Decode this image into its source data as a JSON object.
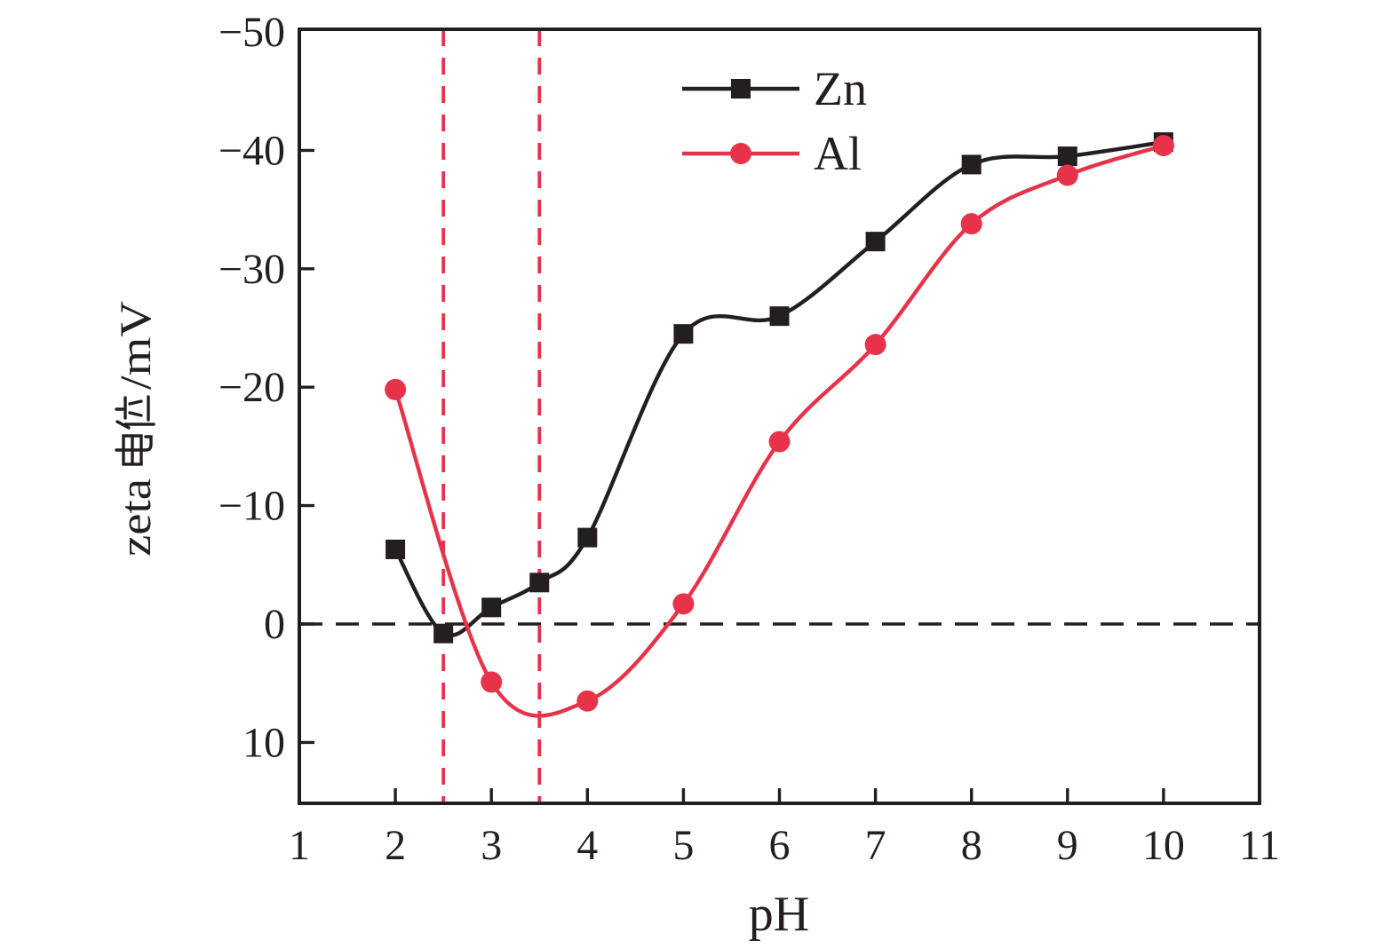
{
  "chart_data": {
    "type": "line",
    "title": "",
    "xlabel": "pH",
    "ylabel": "zeta 电位/mV",
    "ylabel_parts": {
      "prefix": "zeta",
      "cjk": "电位",
      "suffix": "/mV"
    },
    "x_axis": {
      "min": 1,
      "max": 11,
      "tick_values": [
        1,
        2,
        3,
        4,
        5,
        6,
        7,
        8,
        9,
        10,
        11
      ],
      "tick_labels": [
        "1",
        "2",
        "3",
        "4",
        "5",
        "6",
        "7",
        "8",
        "9",
        "10",
        "11"
      ],
      "tickmark_values": [
        2,
        3,
        4,
        5,
        6,
        7,
        8,
        9,
        10
      ]
    },
    "y_axis": {
      "inverted": true,
      "unit": "mV",
      "top_value": -50,
      "bottom_value": 15,
      "tick_values": [
        -50,
        -40,
        -30,
        -20,
        -10,
        0,
        10
      ],
      "tick_labels": [
        "−50",
        "−40",
        "−30",
        "−20",
        "−10",
        "0",
        "10"
      ],
      "tickmark_values": [
        -40,
        -30,
        -20,
        -10,
        0,
        10
      ]
    },
    "series": [
      {
        "name": "Zn",
        "color": "#231f20",
        "marker": "square",
        "x": [
          2,
          2.5,
          3,
          3.5,
          4,
          5,
          6,
          7,
          8,
          9,
          10
        ],
        "y": [
          -6.3,
          0.8,
          -1.4,
          -3.5,
          -7.3,
          -24.5,
          -26.0,
          -32.3,
          -38.8,
          -39.5,
          -40.7
        ]
      },
      {
        "name": "Al",
        "color": "#e73349",
        "marker": "circle",
        "x": [
          2,
          3,
          4,
          5,
          6,
          7,
          8,
          9,
          10
        ],
        "y": [
          -19.8,
          4.9,
          6.5,
          -1.7,
          -15.4,
          -23.6,
          -33.8,
          -37.9,
          -40.4
        ]
      }
    ],
    "reference_lines": {
      "horizontal": {
        "value": 0,
        "style": "dashed",
        "color": "#231f20"
      },
      "vertical": [
        {
          "value": 2.5,
          "style": "dashed",
          "color": "#e73349"
        },
        {
          "value": 3.5,
          "style": "dashed",
          "color": "#e73349"
        }
      ]
    },
    "legend": {
      "position": "top-center",
      "entries": [
        {
          "label": "Zn"
        },
        {
          "label": "Al"
        }
      ]
    }
  },
  "colors": {
    "background": "#ffffff",
    "black": "#231f20",
    "red": "#e73349"
  }
}
